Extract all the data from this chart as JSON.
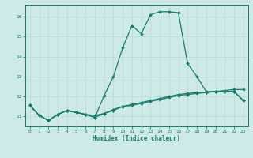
{
  "xlabel": "Humidex (Indice chaleur)",
  "x": [
    0,
    1,
    2,
    3,
    4,
    5,
    6,
    7,
    8,
    9,
    10,
    11,
    12,
    13,
    14,
    15,
    16,
    17,
    18,
    19,
    20,
    21,
    22,
    23
  ],
  "line1": [
    11.55,
    11.05,
    10.8,
    11.1,
    11.3,
    11.2,
    11.1,
    11.05,
    11.15,
    11.3,
    11.5,
    11.55,
    11.65,
    11.75,
    11.85,
    11.95,
    12.05,
    12.1,
    12.15,
    12.2,
    12.25,
    12.3,
    12.35,
    12.35
  ],
  "line2": [
    11.55,
    11.05,
    10.8,
    11.1,
    11.3,
    11.2,
    11.1,
    10.95,
    11.15,
    11.35,
    11.5,
    11.6,
    11.7,
    11.8,
    11.9,
    12.0,
    12.1,
    12.15,
    12.2,
    12.2,
    12.25,
    12.25,
    12.25,
    11.8
  ],
  "line3": [
    11.55,
    11.05,
    10.8,
    11.1,
    11.3,
    11.2,
    11.1,
    10.95,
    12.05,
    13.0,
    14.45,
    15.55,
    15.15,
    16.1,
    16.25,
    16.25,
    16.2,
    13.65,
    13.0,
    12.25,
    12.25,
    12.25,
    12.25,
    11.8
  ],
  "ylim": [
    10.5,
    16.6
  ],
  "xlim": [
    -0.5,
    23.5
  ],
  "yticks": [
    11,
    12,
    13,
    14,
    15,
    16
  ],
  "xticks": [
    0,
    1,
    2,
    3,
    4,
    5,
    6,
    7,
    8,
    9,
    10,
    11,
    12,
    13,
    14,
    15,
    16,
    17,
    18,
    19,
    20,
    21,
    22,
    23
  ],
  "line_color": "#1a7a6a",
  "bg_color": "#ceeae6",
  "grid_color": "#b8d8d4",
  "markersize": 2.0,
  "linewidth": 0.9
}
